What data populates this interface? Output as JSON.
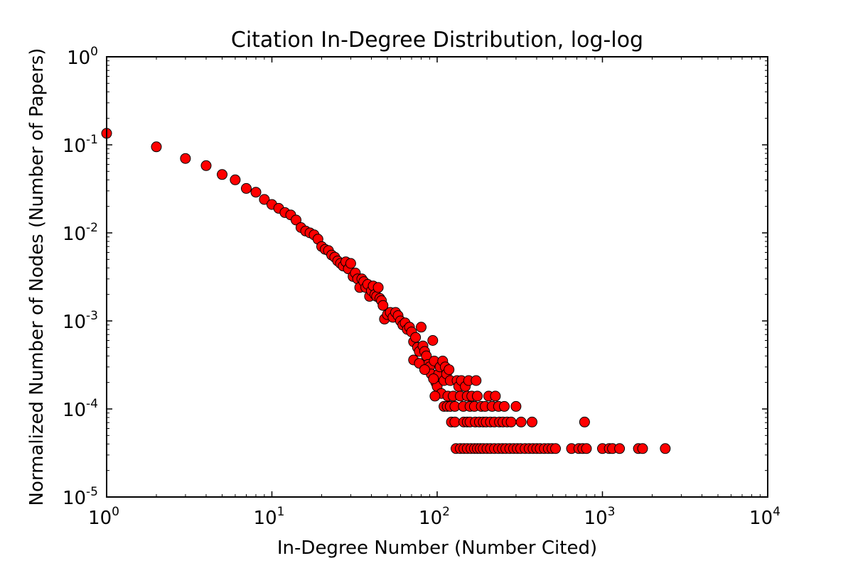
{
  "chart_data": {
    "type": "scatter",
    "title": "Citation In-Degree Distribution, log-log",
    "xlabel": "In-Degree Number (Number Cited)",
    "ylabel": "Normalized Number of Nodes (Number of Papers)",
    "xscale": "log",
    "yscale": "log",
    "xlim": [
      1,
      10000
    ],
    "ylim": [
      1e-05,
      1
    ],
    "grid": false,
    "marker_color": "#ff0000",
    "marker_edge_color": "#000000",
    "x_ticks": [
      {
        "base": "10",
        "exp": "0",
        "value": 1
      },
      {
        "base": "10",
        "exp": "1",
        "value": 10
      },
      {
        "base": "10",
        "exp": "2",
        "value": 100
      },
      {
        "base": "10",
        "exp": "3",
        "value": 1000
      },
      {
        "base": "10",
        "exp": "4",
        "value": 10000
      }
    ],
    "y_ticks": [
      {
        "base": "10",
        "exp": "0",
        "value": 1
      },
      {
        "base": "10",
        "exp": "-1",
        "value": 0.1
      },
      {
        "base": "10",
        "exp": "-2",
        "value": 0.01
      },
      {
        "base": "10",
        "exp": "-3",
        "value": 0.001
      },
      {
        "base": "10",
        "exp": "-4",
        "value": 0.0001
      },
      {
        "base": "10",
        "exp": "-5",
        "value": 1e-05
      }
    ],
    "points": [
      [
        1,
        0.135
      ],
      [
        2,
        0.095
      ],
      [
        3,
        0.07
      ],
      [
        4,
        0.058
      ],
      [
        5,
        0.046
      ],
      [
        6,
        0.04
      ],
      [
        7,
        0.032
      ],
      [
        8,
        0.029
      ],
      [
        9,
        0.024
      ],
      [
        10,
        0.021
      ],
      [
        11,
        0.019
      ],
      [
        12,
        0.017
      ],
      [
        13,
        0.016
      ],
      [
        14,
        0.014
      ],
      [
        15,
        0.0115
      ],
      [
        16,
        0.0105
      ],
      [
        17,
        0.01
      ],
      [
        18,
        0.0095
      ],
      [
        19,
        0.0085
      ],
      [
        20,
        0.007
      ],
      [
        21,
        0.0065
      ],
      [
        22,
        0.0063
      ],
      [
        23,
        0.0056
      ],
      [
        24,
        0.0053
      ],
      [
        25,
        0.0048
      ],
      [
        26,
        0.0045
      ],
      [
        27,
        0.0042
      ],
      [
        28,
        0.0047
      ],
      [
        29,
        0.0039
      ],
      [
        30,
        0.0045
      ],
      [
        31,
        0.0032
      ],
      [
        32,
        0.0035
      ],
      [
        33,
        0.003
      ],
      [
        34,
        0.0024
      ],
      [
        35,
        0.003
      ],
      [
        36,
        0.0028
      ],
      [
        37,
        0.0024
      ],
      [
        38,
        0.0026
      ],
      [
        39,
        0.0019
      ],
      [
        40,
        0.0022
      ],
      [
        41,
        0.0025
      ],
      [
        42,
        0.002
      ],
      [
        43,
        0.0019
      ],
      [
        44,
        0.0024
      ],
      [
        45,
        0.0018
      ],
      [
        46,
        0.0017
      ],
      [
        47,
        0.0015
      ],
      [
        48,
        0.00105
      ],
      [
        50,
        0.00118
      ],
      [
        52,
        0.00125
      ],
      [
        54,
        0.0011
      ],
      [
        56,
        0.00125
      ],
      [
        58,
        0.00115
      ],
      [
        60,
        0.001
      ],
      [
        62,
        0.0009
      ],
      [
        64,
        0.00095
      ],
      [
        66,
        0.0008
      ],
      [
        68,
        0.00085
      ],
      [
        70,
        0.00075
      ],
      [
        72,
        0.00058
      ],
      [
        74,
        0.00065
      ],
      [
        76,
        0.0005
      ],
      [
        78,
        0.00045
      ],
      [
        80,
        0.00085
      ],
      [
        82,
        0.00052
      ],
      [
        84,
        0.00045
      ],
      [
        86,
        0.0004
      ],
      [
        88,
        0.00032
      ],
      [
        90,
        0.0003
      ],
      [
        92,
        0.00025
      ],
      [
        94,
        0.0006
      ],
      [
        96,
        0.00035
      ],
      [
        98,
        0.0002
      ],
      [
        100,
        0.00018
      ],
      [
        102,
        0.00025
      ],
      [
        104,
        0.0003
      ],
      [
        106,
        0.00015
      ],
      [
        72,
        0.00036
      ],
      [
        78,
        0.00033
      ],
      [
        84,
        0.00028
      ],
      [
        95,
        0.00022
      ],
      [
        97,
        0.00014
      ],
      [
        108,
        0.00035
      ],
      [
        110,
        0.00021
      ],
      [
        112,
        0.0003
      ],
      [
        114,
        0.00025
      ],
      [
        116,
        0.00014
      ],
      [
        118,
        0.00028
      ],
      [
        120,
        0.00021
      ],
      [
        110,
        0.000107
      ],
      [
        115,
        0.000107
      ],
      [
        120,
        0.000107
      ],
      [
        125,
        0.00014
      ],
      [
        128,
        0.000107
      ],
      [
        132,
        0.00021
      ],
      [
        135,
        0.00018
      ],
      [
        138,
        0.00014
      ],
      [
        140,
        0.00021
      ],
      [
        144,
        0.000107
      ],
      [
        148,
        0.00018
      ],
      [
        152,
        0.00014
      ],
      [
        155,
        0.00021
      ],
      [
        158,
        0.000107
      ],
      [
        162,
        0.00014
      ],
      [
        168,
        0.000107
      ],
      [
        172,
        0.00021
      ],
      [
        175,
        0.00014
      ],
      [
        185,
        0.000107
      ],
      [
        195,
        0.000107
      ],
      [
        205,
        0.00014
      ],
      [
        215,
        0.000107
      ],
      [
        225,
        0.00014
      ],
      [
        235,
        0.000107
      ],
      [
        255,
        0.000107
      ],
      [
        300,
        0.000107
      ],
      [
        122,
        7.1e-05
      ],
      [
        128,
        7.1e-05
      ],
      [
        145,
        7.1e-05
      ],
      [
        152,
        7.1e-05
      ],
      [
        158,
        7.1e-05
      ],
      [
        170,
        7.1e-05
      ],
      [
        180,
        7.1e-05
      ],
      [
        190,
        7.1e-05
      ],
      [
        198,
        7.1e-05
      ],
      [
        210,
        7.1e-05
      ],
      [
        222,
        7.1e-05
      ],
      [
        238,
        7.1e-05
      ],
      [
        250,
        7.1e-05
      ],
      [
        265,
        7.1e-05
      ],
      [
        280,
        7.1e-05
      ],
      [
        322,
        7.1e-05
      ],
      [
        375,
        7.1e-05
      ],
      [
        780,
        7.1e-05
      ],
      [
        130,
        3.55e-05
      ],
      [
        138,
        3.55e-05
      ],
      [
        145,
        3.55e-05
      ],
      [
        152,
        3.55e-05
      ],
      [
        160,
        3.55e-05
      ],
      [
        168,
        3.55e-05
      ],
      [
        175,
        3.55e-05
      ],
      [
        182,
        3.55e-05
      ],
      [
        190,
        3.55e-05
      ],
      [
        200,
        3.55e-05
      ],
      [
        210,
        3.55e-05
      ],
      [
        222,
        3.55e-05
      ],
      [
        235,
        3.55e-05
      ],
      [
        248,
        3.55e-05
      ],
      [
        260,
        3.55e-05
      ],
      [
        275,
        3.55e-05
      ],
      [
        290,
        3.55e-05
      ],
      [
        305,
        3.55e-05
      ],
      [
        320,
        3.55e-05
      ],
      [
        340,
        3.55e-05
      ],
      [
        360,
        3.55e-05
      ],
      [
        380,
        3.55e-05
      ],
      [
        400,
        3.55e-05
      ],
      [
        420,
        3.55e-05
      ],
      [
        445,
        3.55e-05
      ],
      [
        470,
        3.55e-05
      ],
      [
        495,
        3.55e-05
      ],
      [
        520,
        3.55e-05
      ],
      [
        650,
        3.55e-05
      ],
      [
        720,
        3.55e-05
      ],
      [
        760,
        3.55e-05
      ],
      [
        800,
        3.55e-05
      ],
      [
        1000,
        3.55e-05
      ],
      [
        1100,
        3.55e-05
      ],
      [
        1150,
        3.55e-05
      ],
      [
        1270,
        3.55e-05
      ],
      [
        1650,
        3.55e-05
      ],
      [
        1750,
        3.55e-05
      ],
      [
        2400,
        3.55e-05
      ]
    ]
  }
}
